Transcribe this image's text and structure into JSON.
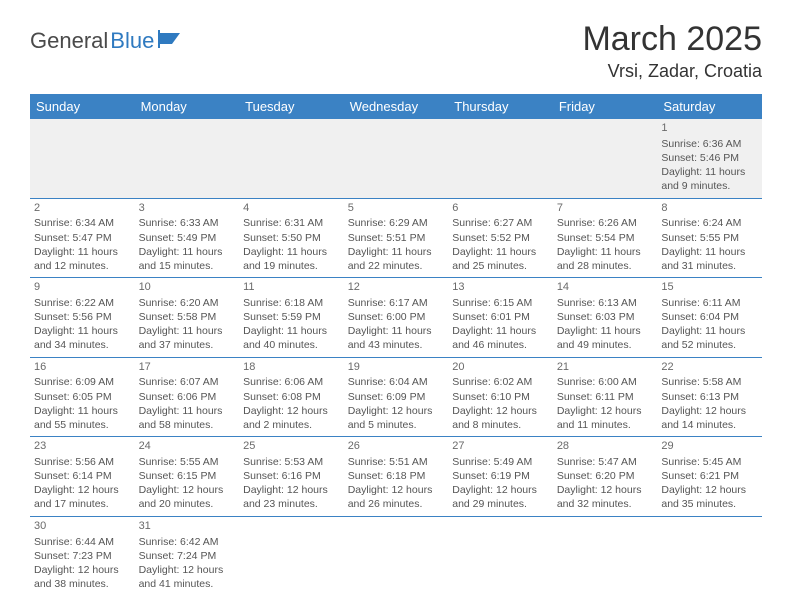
{
  "logo": {
    "text1": "General",
    "text2": "Blue"
  },
  "title": "March 2025",
  "location": "Vrsi, Zadar, Croatia",
  "colors": {
    "header_bg": "#3b82c4",
    "header_text": "#ffffff",
    "border": "#3b82c4",
    "body_text": "#555555",
    "first_row_bg": "#f0f0f0",
    "logo_gray": "#4a4a4a",
    "logo_blue": "#2f7ac0"
  },
  "typography": {
    "title_fontsize": 34,
    "location_fontsize": 18,
    "dayheader_fontsize": 13,
    "cell_fontsize": 10.5,
    "logo_fontsize": 22
  },
  "day_headers": [
    "Sunday",
    "Monday",
    "Tuesday",
    "Wednesday",
    "Thursday",
    "Friday",
    "Saturday"
  ],
  "weeks": [
    [
      null,
      null,
      null,
      null,
      null,
      null,
      {
        "n": "1",
        "sr": "Sunrise: 6:36 AM",
        "ss": "Sunset: 5:46 PM",
        "dl": "Daylight: 11 hours and 9 minutes."
      }
    ],
    [
      {
        "n": "2",
        "sr": "Sunrise: 6:34 AM",
        "ss": "Sunset: 5:47 PM",
        "dl": "Daylight: 11 hours and 12 minutes."
      },
      {
        "n": "3",
        "sr": "Sunrise: 6:33 AM",
        "ss": "Sunset: 5:49 PM",
        "dl": "Daylight: 11 hours and 15 minutes."
      },
      {
        "n": "4",
        "sr": "Sunrise: 6:31 AM",
        "ss": "Sunset: 5:50 PM",
        "dl": "Daylight: 11 hours and 19 minutes."
      },
      {
        "n": "5",
        "sr": "Sunrise: 6:29 AM",
        "ss": "Sunset: 5:51 PM",
        "dl": "Daylight: 11 hours and 22 minutes."
      },
      {
        "n": "6",
        "sr": "Sunrise: 6:27 AM",
        "ss": "Sunset: 5:52 PM",
        "dl": "Daylight: 11 hours and 25 minutes."
      },
      {
        "n": "7",
        "sr": "Sunrise: 6:26 AM",
        "ss": "Sunset: 5:54 PM",
        "dl": "Daylight: 11 hours and 28 minutes."
      },
      {
        "n": "8",
        "sr": "Sunrise: 6:24 AM",
        "ss": "Sunset: 5:55 PM",
        "dl": "Daylight: 11 hours and 31 minutes."
      }
    ],
    [
      {
        "n": "9",
        "sr": "Sunrise: 6:22 AM",
        "ss": "Sunset: 5:56 PM",
        "dl": "Daylight: 11 hours and 34 minutes."
      },
      {
        "n": "10",
        "sr": "Sunrise: 6:20 AM",
        "ss": "Sunset: 5:58 PM",
        "dl": "Daylight: 11 hours and 37 minutes."
      },
      {
        "n": "11",
        "sr": "Sunrise: 6:18 AM",
        "ss": "Sunset: 5:59 PM",
        "dl": "Daylight: 11 hours and 40 minutes."
      },
      {
        "n": "12",
        "sr": "Sunrise: 6:17 AM",
        "ss": "Sunset: 6:00 PM",
        "dl": "Daylight: 11 hours and 43 minutes."
      },
      {
        "n": "13",
        "sr": "Sunrise: 6:15 AM",
        "ss": "Sunset: 6:01 PM",
        "dl": "Daylight: 11 hours and 46 minutes."
      },
      {
        "n": "14",
        "sr": "Sunrise: 6:13 AM",
        "ss": "Sunset: 6:03 PM",
        "dl": "Daylight: 11 hours and 49 minutes."
      },
      {
        "n": "15",
        "sr": "Sunrise: 6:11 AM",
        "ss": "Sunset: 6:04 PM",
        "dl": "Daylight: 11 hours and 52 minutes."
      }
    ],
    [
      {
        "n": "16",
        "sr": "Sunrise: 6:09 AM",
        "ss": "Sunset: 6:05 PM",
        "dl": "Daylight: 11 hours and 55 minutes."
      },
      {
        "n": "17",
        "sr": "Sunrise: 6:07 AM",
        "ss": "Sunset: 6:06 PM",
        "dl": "Daylight: 11 hours and 58 minutes."
      },
      {
        "n": "18",
        "sr": "Sunrise: 6:06 AM",
        "ss": "Sunset: 6:08 PM",
        "dl": "Daylight: 12 hours and 2 minutes."
      },
      {
        "n": "19",
        "sr": "Sunrise: 6:04 AM",
        "ss": "Sunset: 6:09 PM",
        "dl": "Daylight: 12 hours and 5 minutes."
      },
      {
        "n": "20",
        "sr": "Sunrise: 6:02 AM",
        "ss": "Sunset: 6:10 PM",
        "dl": "Daylight: 12 hours and 8 minutes."
      },
      {
        "n": "21",
        "sr": "Sunrise: 6:00 AM",
        "ss": "Sunset: 6:11 PM",
        "dl": "Daylight: 12 hours and 11 minutes."
      },
      {
        "n": "22",
        "sr": "Sunrise: 5:58 AM",
        "ss": "Sunset: 6:13 PM",
        "dl": "Daylight: 12 hours and 14 minutes."
      }
    ],
    [
      {
        "n": "23",
        "sr": "Sunrise: 5:56 AM",
        "ss": "Sunset: 6:14 PM",
        "dl": "Daylight: 12 hours and 17 minutes."
      },
      {
        "n": "24",
        "sr": "Sunrise: 5:55 AM",
        "ss": "Sunset: 6:15 PM",
        "dl": "Daylight: 12 hours and 20 minutes."
      },
      {
        "n": "25",
        "sr": "Sunrise: 5:53 AM",
        "ss": "Sunset: 6:16 PM",
        "dl": "Daylight: 12 hours and 23 minutes."
      },
      {
        "n": "26",
        "sr": "Sunrise: 5:51 AM",
        "ss": "Sunset: 6:18 PM",
        "dl": "Daylight: 12 hours and 26 minutes."
      },
      {
        "n": "27",
        "sr": "Sunrise: 5:49 AM",
        "ss": "Sunset: 6:19 PM",
        "dl": "Daylight: 12 hours and 29 minutes."
      },
      {
        "n": "28",
        "sr": "Sunrise: 5:47 AM",
        "ss": "Sunset: 6:20 PM",
        "dl": "Daylight: 12 hours and 32 minutes."
      },
      {
        "n": "29",
        "sr": "Sunrise: 5:45 AM",
        "ss": "Sunset: 6:21 PM",
        "dl": "Daylight: 12 hours and 35 minutes."
      }
    ],
    [
      {
        "n": "30",
        "sr": "Sunrise: 6:44 AM",
        "ss": "Sunset: 7:23 PM",
        "dl": "Daylight: 12 hours and 38 minutes."
      },
      {
        "n": "31",
        "sr": "Sunrise: 6:42 AM",
        "ss": "Sunset: 7:24 PM",
        "dl": "Daylight: 12 hours and 41 minutes."
      },
      null,
      null,
      null,
      null,
      null
    ]
  ]
}
